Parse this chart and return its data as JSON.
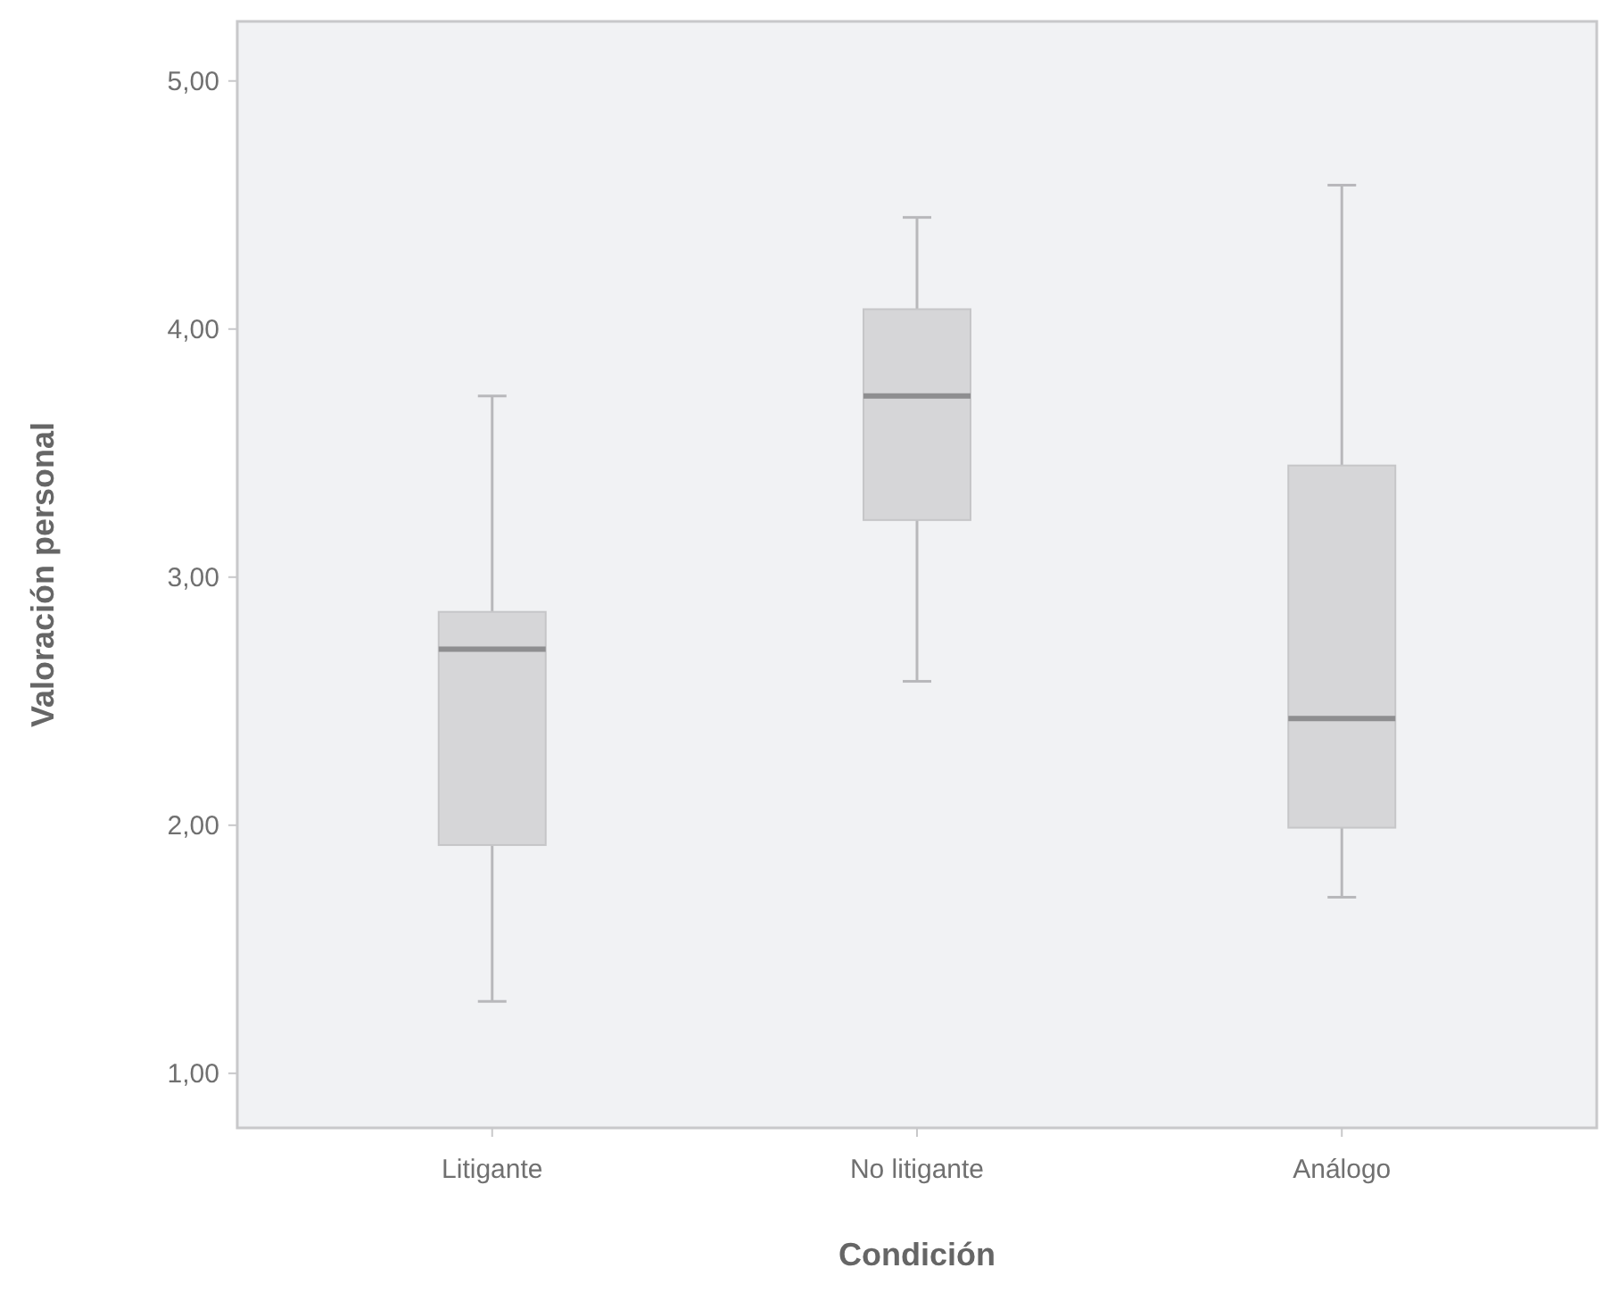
{
  "chart_data": {
    "type": "box",
    "xlabel": "Condición",
    "ylabel": "Valoración personal",
    "categories": [
      "Litigante",
      "No litigante",
      "Análogo"
    ],
    "boxes": [
      {
        "low": 1.29,
        "q1": 1.92,
        "median": 2.71,
        "q3": 2.86,
        "high": 3.73
      },
      {
        "low": 2.58,
        "q1": 3.23,
        "median": 3.73,
        "q3": 4.08,
        "high": 4.45
      },
      {
        "low": 1.71,
        "q1": 1.99,
        "median": 2.43,
        "q3": 3.45,
        "high": 4.58
      }
    ],
    "color": "#d6d6d8",
    "ylim": [
      0.78,
      5.24
    ],
    "yticks": [
      {
        "value": 1,
        "label": "1,00"
      },
      {
        "value": 2,
        "label": "2,00"
      },
      {
        "value": 3,
        "label": "3,00"
      },
      {
        "value": 4,
        "label": "4,00"
      },
      {
        "value": 5,
        "label": "5,00"
      }
    ],
    "grid": false
  }
}
